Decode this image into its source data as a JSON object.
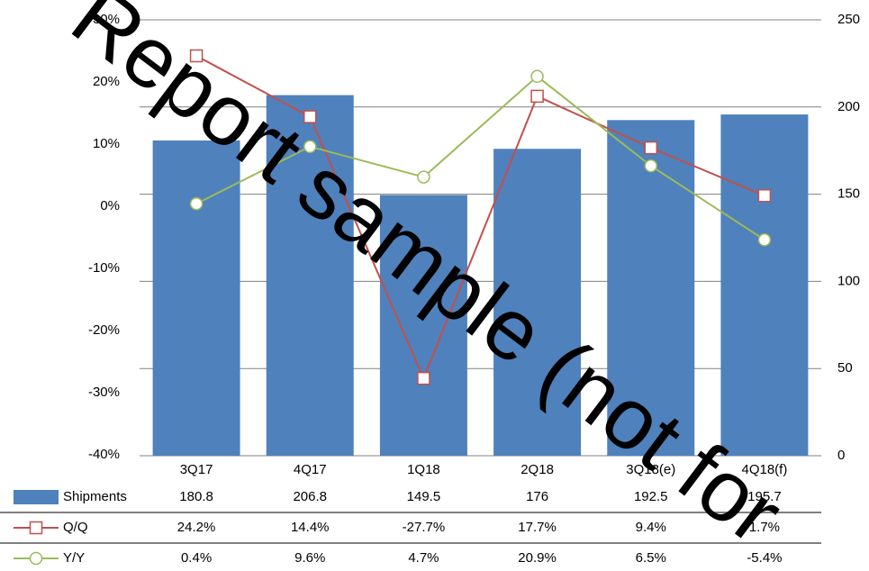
{
  "chart_data": {
    "type": "bar",
    "categories": [
      "3Q17",
      "4Q17",
      "1Q18",
      "2Q18",
      "3Q18(e)",
      "4Q18(f)"
    ],
    "series": [
      {
        "name": "Shipments",
        "type": "bar",
        "axis": "y2",
        "color": "#4f81bd",
        "values": [
          180.8,
          206.8,
          149.5,
          176,
          192.5,
          195.7
        ]
      },
      {
        "name": "Q/Q",
        "type": "line",
        "marker": "square",
        "color": "#c0504d",
        "values": [
          24.2,
          14.4,
          -27.7,
          17.7,
          9.4,
          1.7
        ],
        "value_labels": [
          "24.2%",
          "14.4%",
          "-27.7%",
          "17.7%",
          "9.4%",
          "1.7%"
        ]
      },
      {
        "name": "Y/Y",
        "type": "line",
        "marker": "circle",
        "color": "#9bbb59",
        "values": [
          0.4,
          9.6,
          4.7,
          20.9,
          6.5,
          -5.4
        ],
        "value_labels": [
          "0.4%",
          "9.6%",
          "4.7%",
          "20.9%",
          "6.5%",
          "-5.4%"
        ]
      }
    ],
    "ylim": [
      -40,
      30
    ],
    "yticks": [
      {
        "value": -40,
        "label": "-40%"
      },
      {
        "value": -30,
        "label": "-30%"
      },
      {
        "value": -20,
        "label": "-20%"
      },
      {
        "value": -10,
        "label": "-10%"
      },
      {
        "value": 0,
        "label": "0%"
      },
      {
        "value": 10,
        "label": "10%"
      },
      {
        "value": 20,
        "label": "20%"
      },
      {
        "value": 30,
        "label": "30%"
      }
    ],
    "y2lim": [
      0,
      250
    ],
    "y2ticks": [
      0,
      50,
      100,
      150,
      200,
      250
    ],
    "grid": true,
    "watermark": "Report sample (not for"
  }
}
